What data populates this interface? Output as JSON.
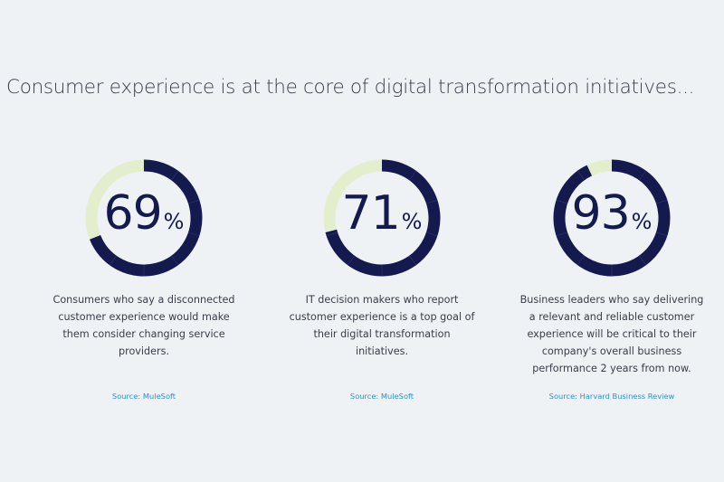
{
  "headline": "Consumer experience is at the core of digital transformation initiatives...",
  "colors": {
    "background": "#eef2f5",
    "ring_filled": "#141a4e",
    "ring_empty": "#e3efcc",
    "source_link": "#2a8fd6",
    "number": "#141a4e"
  },
  "chart_data": [
    {
      "type": "pie",
      "values": [
        69,
        31
      ],
      "categories": [
        "",
        ""
      ],
      "label": "69",
      "unit": "%",
      "description": "Consumers who say a disconnected customer experience would make them consider changing service providers.",
      "source": "Source: MuleSoft"
    },
    {
      "type": "pie",
      "values": [
        71,
        29
      ],
      "categories": [
        "",
        ""
      ],
      "label": "71",
      "unit": "%",
      "description": "IT decision makers who report customer experience is a top goal of their digital transformation initiatives.",
      "source": "Source: MuleSoft"
    },
    {
      "type": "pie",
      "values": [
        93,
        7
      ],
      "categories": [
        "",
        ""
      ],
      "label": "93",
      "unit": "%",
      "description": "Business leaders who say delivering a relevant and reliable customer experience will be critical to their company's overall business performance 2 years from now.",
      "source": "Source: Harvard Business Review"
    }
  ]
}
